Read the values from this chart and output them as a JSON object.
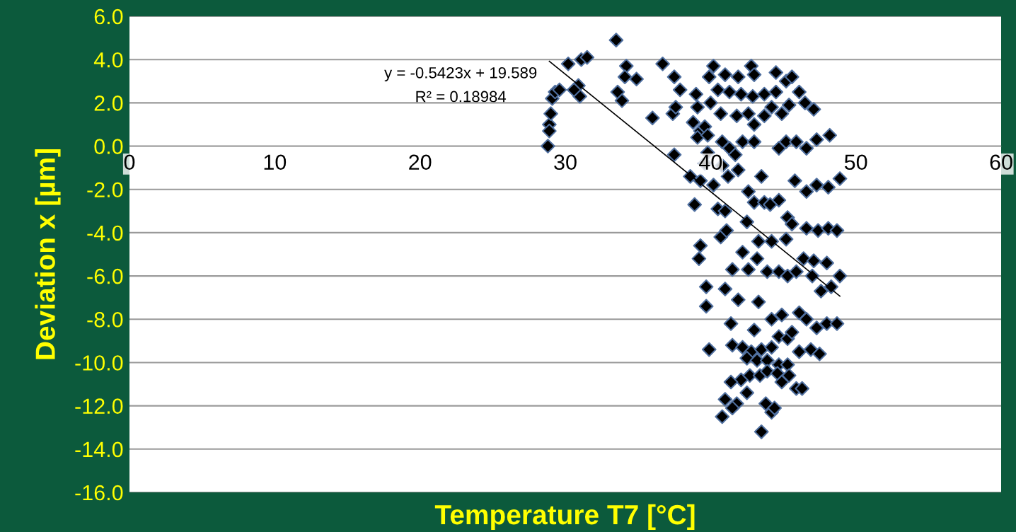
{
  "chart_data": {
    "type": "scatter",
    "xlabel": "Temperature T7 [°C]",
    "ylabel": "Deviation x [µm]",
    "annotations": [
      "y = -0.5423x + 19.589",
      "R² = 0.18984"
    ],
    "xlim": [
      0,
      60
    ],
    "xticks": [
      0,
      10,
      20,
      30,
      40,
      50,
      60
    ],
    "ylim": [
      -16,
      6
    ],
    "yticks": [
      {
        "value": -16,
        "label": "-16.0"
      },
      {
        "value": -14,
        "label": "-14.0"
      },
      {
        "value": -12,
        "label": "-12.0"
      },
      {
        "value": -10,
        "label": "-10.0"
      },
      {
        "value": -8,
        "label": "-8.0"
      },
      {
        "value": -6,
        "label": "-6.0"
      },
      {
        "value": -4,
        "label": "-4.0"
      },
      {
        "value": -2,
        "label": "-2.0"
      },
      {
        "value": 0,
        "label": "0.0"
      },
      {
        "value": 2,
        "label": "2.0"
      },
      {
        "value": 4,
        "label": "4.0"
      },
      {
        "value": 6,
        "label": "6.0"
      }
    ],
    "grid": "y",
    "marker": "diamond",
    "legend": false,
    "series": [
      {
        "color": "#000000",
        "x": [
          28.8,
          28.9,
          29.0,
          28.9,
          29.1,
          29.3,
          29.6,
          30.2,
          30.9,
          31.0,
          30.6,
          31.1,
          31.5,
          33.5,
          33.6,
          33.9,
          34.2,
          34.1,
          34.9,
          36.0,
          36.7,
          37.5,
          37.4,
          37.6,
          37.9,
          37.5,
          39.0,
          39.1,
          38.8,
          39.3,
          39.6,
          39.1,
          39.8,
          39.6,
          38.6,
          39.3,
          38.9,
          40.2,
          39.9,
          41.0,
          41.9,
          42.8,
          43.0,
          40.5,
          41.3,
          42.1,
          42.9,
          43.7,
          44.5,
          44.5,
          45.2,
          45.6,
          40.0,
          40.7,
          41.8,
          42.6,
          43.0,
          43.7,
          44.2,
          44.9,
          45.4,
          39.8,
          40.8,
          41.3,
          41.7,
          42.2,
          43.0,
          44.7,
          45.2,
          45.9,
          46.6,
          47.3,
          48.2,
          46.5,
          47.1,
          46.1,
          40.8,
          41.9,
          40.2,
          41.2,
          42.6,
          43.5,
          43.0,
          43.7,
          44.7,
          45.8,
          46.6,
          47.3,
          48.1,
          48.9,
          40.5,
          41.0,
          42.5,
          44.1,
          45.3,
          45.6,
          46.6,
          47.4,
          48.1,
          48.7,
          39.3,
          39.2,
          40.7,
          41.1,
          41.5,
          42.2,
          42.6,
          43.2,
          43.3,
          44.2,
          45.2,
          43.9,
          44.7,
          45.3,
          45.9,
          46.4,
          47.1,
          48.0,
          48.9,
          47.0,
          47.6,
          48.3,
          39.7,
          39.7,
          41.0,
          41.9,
          43.3,
          41.4,
          43.0,
          44.2,
          44.9,
          46.1,
          46.6,
          47.3,
          48.0,
          48.7,
          39.9,
          41.5,
          42.2,
          42.8,
          43.5,
          44.2,
          44.7,
          45.3,
          45.6,
          46.1,
          46.9,
          47.5,
          42.5,
          43.2,
          43.9,
          44.7,
          45.3,
          42.1,
          42.7,
          43.4,
          43.9,
          44.6,
          44.9,
          45.4,
          45.9,
          46.3,
          41.4,
          41.0,
          41.8,
          41.5,
          42.5,
          43.8,
          44.2,
          44.4,
          40.8,
          43.5
        ],
        "values": [
          0.0,
          1.0,
          1.5,
          0.7,
          2.2,
          2.5,
          2.6,
          3.8,
          2.8,
          2.3,
          2.6,
          4.0,
          4.1,
          4.9,
          2.5,
          2.1,
          3.7,
          3.2,
          3.1,
          1.3,
          3.8,
          3.2,
          1.5,
          1.8,
          2.6,
          -0.4,
          2.4,
          1.8,
          1.1,
          0.7,
          0.9,
          0.4,
          -0.3,
          -0.8,
          -1.4,
          -1.6,
          -2.7,
          3.7,
          3.2,
          3.3,
          3.2,
          3.7,
          3.3,
          2.6,
          2.5,
          2.4,
          2.3,
          2.4,
          2.5,
          3.4,
          3.0,
          3.2,
          2.0,
          1.5,
          1.4,
          1.5,
          1.0,
          1.4,
          1.8,
          1.5,
          1.9,
          0.5,
          0.2,
          -0.1,
          -0.4,
          0.2,
          0.2,
          -0.1,
          0.2,
          0.2,
          -0.1,
          0.3,
          0.5,
          2.0,
          1.7,
          2.5,
          -0.9,
          -1.1,
          -1.8,
          -1.4,
          -2.1,
          -1.4,
          -2.6,
          -2.6,
          -2.5,
          -1.6,
          -2.1,
          -1.8,
          -1.9,
          -1.5,
          -2.9,
          -3.0,
          -3.5,
          -2.7,
          -3.3,
          -3.6,
          -3.8,
          -3.9,
          -3.8,
          -3.9,
          -4.6,
          -5.2,
          -4.2,
          -3.9,
          -5.7,
          -4.9,
          -5.7,
          -5.2,
          -4.4,
          -4.4,
          -4.3,
          -5.8,
          -5.8,
          -6.0,
          -5.8,
          -5.2,
          -5.3,
          -5.4,
          -6.0,
          -6.0,
          -6.7,
          -6.5,
          -6.5,
          -7.4,
          -6.6,
          -7.1,
          -7.2,
          -8.2,
          -8.5,
          -8.0,
          -7.8,
          -7.7,
          -8.0,
          -8.4,
          -8.2,
          -8.2,
          -9.4,
          -9.2,
          -9.3,
          -9.5,
          -9.4,
          -9.3,
          -8.8,
          -8.9,
          -8.6,
          -9.5,
          -9.4,
          -9.6,
          -9.8,
          -9.9,
          -9.9,
          -10.1,
          -10.1,
          -10.8,
          -10.6,
          -10.6,
          -10.4,
          -10.5,
          -10.9,
          -10.6,
          -11.2,
          -11.2,
          -10.9,
          -11.7,
          -11.9,
          -12.1,
          -11.4,
          -11.9,
          -12.3,
          -12.1,
          -12.5,
          -13.2
        ]
      },
      {
        "type": "line",
        "marker": "none",
        "color": "#000000",
        "x": [
          28.9,
          48.9
        ],
        "values": [
          3.92,
          -6.93
        ]
      }
    ]
  }
}
